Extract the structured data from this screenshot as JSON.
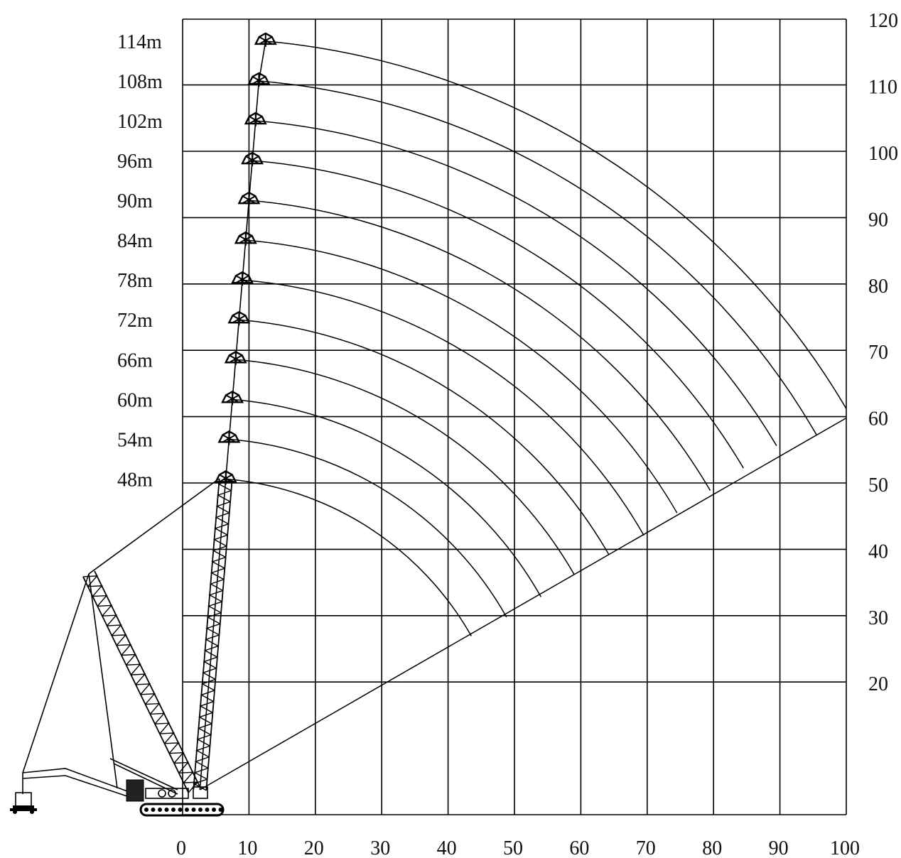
{
  "chart_data": {
    "type": "line",
    "title": "",
    "xlabel": "",
    "ylabel": "",
    "xlim": [
      0,
      100
    ],
    "ylim": [
      10,
      120
    ],
    "x_ticks": [
      "0",
      "10",
      "20",
      "30",
      "40",
      "50",
      "60",
      "70",
      "80",
      "90",
      "100"
    ],
    "y_ticks": [
      "20",
      "30",
      "40",
      "50",
      "60",
      "70",
      "80",
      "90",
      "100",
      "110",
      "120"
    ],
    "grid": true,
    "boom_lengths": [
      "48m",
      "54m",
      "60m",
      "66m",
      "72m",
      "78m",
      "84m",
      "90m",
      "96m",
      "102m",
      "108m",
      "114m"
    ],
    "tips": [
      {
        "x": 6.5,
        "y": 50.6
      },
      {
        "x": 7.0,
        "y": 56.6
      },
      {
        "x": 7.5,
        "y": 62.6
      },
      {
        "x": 8.0,
        "y": 68.6
      },
      {
        "x": 8.5,
        "y": 74.6
      },
      {
        "x": 9.0,
        "y": 80.6
      },
      {
        "x": 9.5,
        "y": 86.6
      },
      {
        "x": 10.0,
        "y": 92.6
      },
      {
        "x": 10.5,
        "y": 98.6
      },
      {
        "x": 11.0,
        "y": 104.6
      },
      {
        "x": 11.5,
        "y": 110.6
      },
      {
        "x": 12.5,
        "y": 116.6
      }
    ],
    "arc_end_x": [
      43.5,
      48.8,
      54.0,
      59.0,
      64.2,
      69.5,
      74.5,
      79.5,
      84.5,
      89.5,
      95.5,
      100.0
    ]
  }
}
